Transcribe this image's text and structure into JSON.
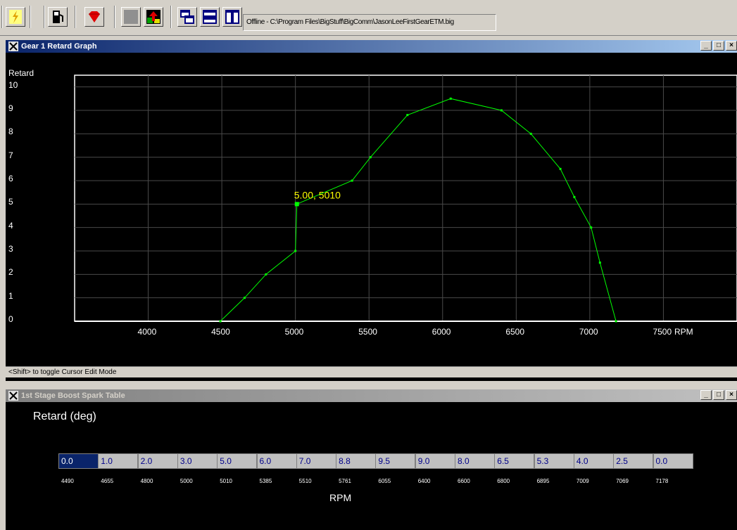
{
  "toolbar": {
    "status_path": "Offline - C:\\Program Files\\BigStuff\\BigComm\\JasonLeeFirstGearETM.big"
  },
  "graph_window": {
    "title": "Gear 1 Retard Graph",
    "status": "<Shift> to toggle Cursor Edit Mode",
    "min_label": "_",
    "max_label": "□",
    "close_label": "×"
  },
  "table_window": {
    "title": "1st Stage Boost Spark Table",
    "heading": "Retard (deg)",
    "xlabel": "RPM",
    "values": [
      "0.0",
      "1.0",
      "2.0",
      "3.0",
      "5.0",
      "6.0",
      "7.0",
      "8.8",
      "9.5",
      "9.0",
      "8.0",
      "6.5",
      "5.3",
      "4.0",
      "2.5",
      "0.0"
    ],
    "rpms": [
      "4490",
      "4655",
      "4800",
      "5000",
      "5010",
      "5385",
      "5510",
      "5761",
      "6055",
      "6400",
      "6600",
      "6800",
      "6895",
      "7009",
      "7069",
      "7178"
    ]
  },
  "chart_data": {
    "type": "line",
    "ylabel": "Retard",
    "xlabel": "RPM",
    "x_ticks": [
      "4000",
      "4500",
      "5000",
      "5500",
      "6000",
      "6500",
      "7000",
      "7500"
    ],
    "y_ticks": [
      "0",
      "1",
      "2",
      "3",
      "4",
      "5",
      "6",
      "7",
      "8",
      "9",
      "10"
    ],
    "xlim": [
      3500,
      8000
    ],
    "ylim": [
      0,
      10.5
    ],
    "cursor_label": "5.00, 5010",
    "cursor": {
      "x": 5010,
      "y": 5.0
    },
    "series": [
      {
        "x": [
          4490,
          4655,
          4800,
          5000,
          5010,
          5385,
          5510,
          5761,
          6055,
          6400,
          6600,
          6800,
          6895,
          7009,
          7069,
          7178
        ],
        "y": [
          0.0,
          1.0,
          2.0,
          3.0,
          5.0,
          6.0,
          7.0,
          8.8,
          9.5,
          9.0,
          8.0,
          6.5,
          5.3,
          4.0,
          2.5,
          0.0
        ]
      }
    ],
    "line_color": "#00ff00",
    "grid": true
  }
}
